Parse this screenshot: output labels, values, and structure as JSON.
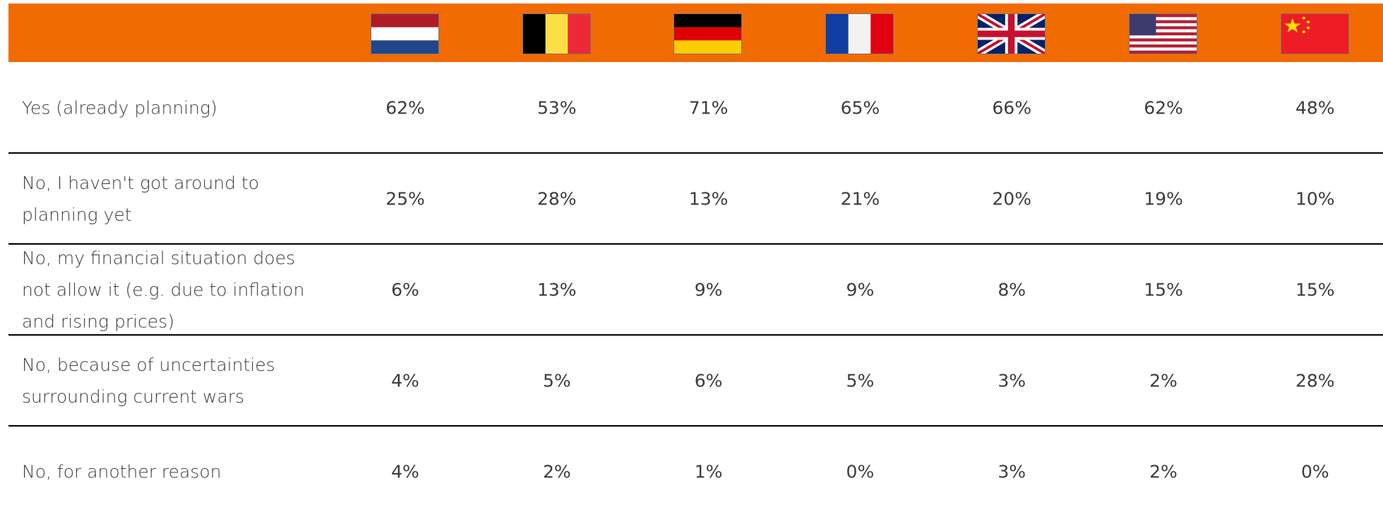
{
  "table": {
    "rows": [
      {
        "label": "Yes (already planning)",
        "values": [
          "62%",
          "53%",
          "71%",
          "65%",
          "66%",
          "62%",
          "48%"
        ]
      },
      {
        "label": "No, I haven't got around to planning yet",
        "values": [
          "25%",
          "28%",
          "13%",
          "21%",
          "20%",
          "19%",
          "10%"
        ]
      },
      {
        "label": "No, my financial situation does not allow it (e.g. due to inflation and rising prices)",
        "values": [
          "6%",
          "13%",
          "9%",
          "9%",
          "8%",
          "15%",
          "15%"
        ]
      },
      {
        "label": "No, because of uncertainties surrounding current wars",
        "values": [
          "4%",
          "5%",
          "6%",
          "5%",
          "3%",
          "2%",
          "28%"
        ]
      },
      {
        "label": "No, for another reason",
        "values": [
          "4%",
          "2%",
          "1%",
          "0%",
          "3%",
          "2%",
          "0%"
        ]
      }
    ]
  }
}
